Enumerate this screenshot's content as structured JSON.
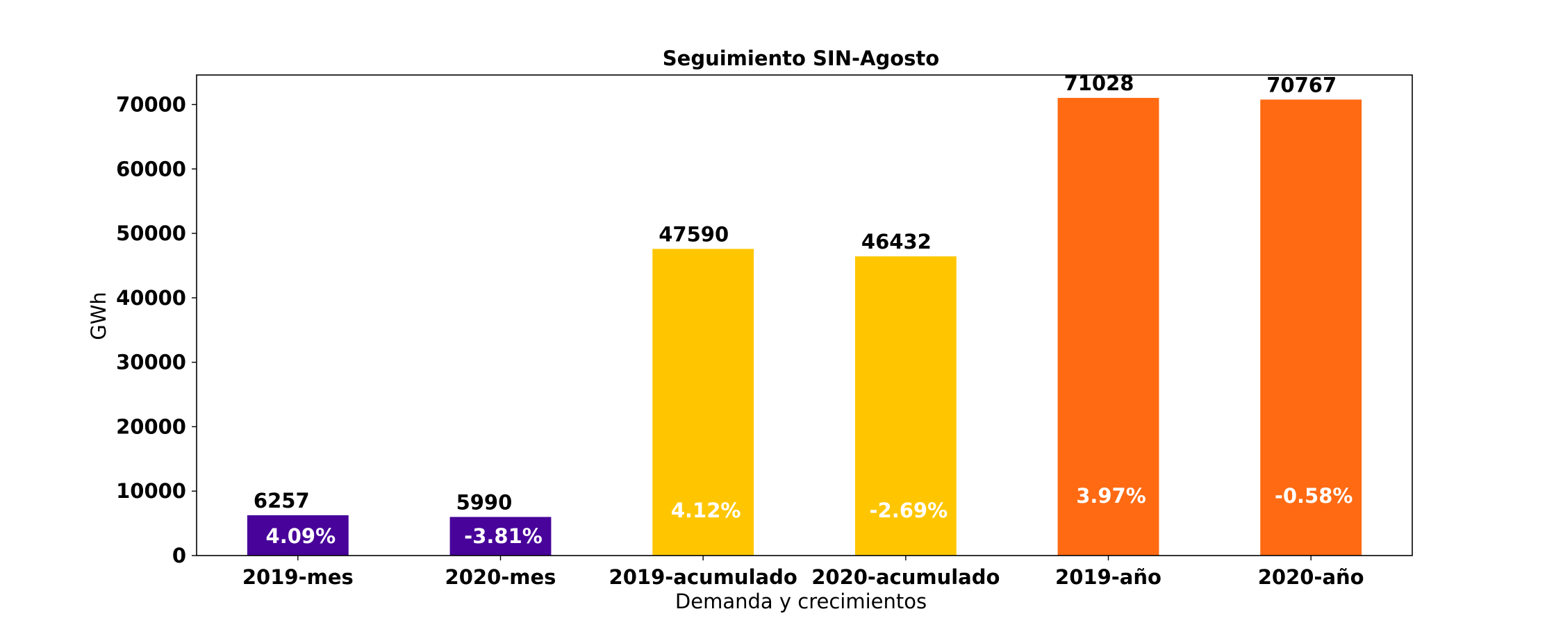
{
  "chart_data": {
    "type": "bar",
    "title": "Seguimiento SIN-Agosto",
    "xlabel": "Demanda y crecimientos",
    "ylabel": "GWh",
    "categories": [
      "2019-mes",
      "2020-mes",
      "2019-acumulado",
      "2020-acumulado",
      "2019-año",
      "2020-año"
    ],
    "values": [
      6257,
      5990,
      47590,
      46432,
      71028,
      70767
    ],
    "value_labels": [
      "6257",
      "5990",
      "47590",
      "46432",
      "71028",
      "70767"
    ],
    "growth_labels": [
      "4.09%",
      "-3.81%",
      "4.12%",
      "-2.69%",
      "3.97%",
      "-0.58%"
    ],
    "bar_colors": [
      "#48039a",
      "#48039a",
      "#ffc600",
      "#ffc600",
      "#ff6a13",
      "#ff6a13"
    ],
    "ylim": [
      0,
      74579
    ],
    "yticks": [
      0,
      10000,
      20000,
      30000,
      40000,
      50000,
      60000,
      70000
    ],
    "ytick_labels": [
      "0",
      "10000",
      "20000",
      "30000",
      "40000",
      "50000",
      "60000",
      "70000"
    ],
    "grid": false,
    "legend": "none"
  }
}
